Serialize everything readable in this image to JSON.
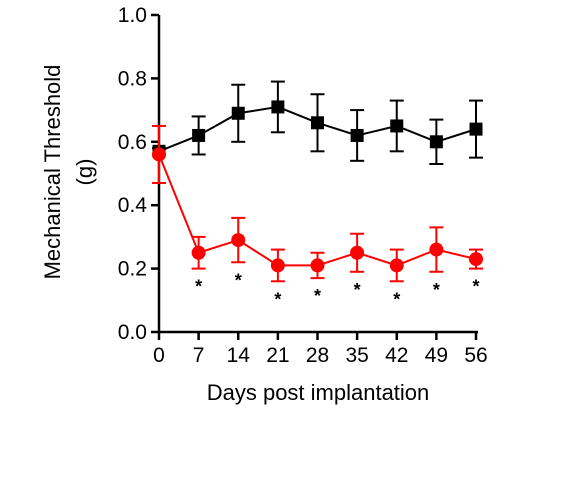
{
  "chart_data": {
    "type": "line",
    "xlabel": "Days post implantation",
    "ylabel_line1": "Mechanical Threshold",
    "ylabel_line2": "(g)",
    "x": [
      0,
      7,
      14,
      21,
      28,
      35,
      42,
      49,
      56
    ],
    "x_tick_labels": [
      "0",
      "7",
      "14",
      "21",
      "28",
      "35",
      "42",
      "49",
      "56"
    ],
    "y_ticks": [
      0.0,
      0.2,
      0.4,
      0.6,
      0.8,
      1.0
    ],
    "y_tick_labels": [
      "0.0",
      "0.2",
      "0.4",
      "0.6",
      "0.8",
      "1.0"
    ],
    "xlim": [
      0,
      56
    ],
    "ylim": [
      0,
      1.0
    ],
    "grid": false,
    "series": [
      {
        "marker": "square",
        "color": "#000000",
        "values": [
          0.57,
          0.62,
          0.69,
          0.71,
          0.66,
          0.62,
          0.65,
          0.6,
          0.64
        ],
        "errors": [
          0.01,
          0.06,
          0.09,
          0.08,
          0.09,
          0.08,
          0.08,
          0.07,
          0.09
        ]
      },
      {
        "marker": "circle",
        "color": "#ff0000",
        "values": [
          0.56,
          0.25,
          0.29,
          0.21,
          0.21,
          0.25,
          0.21,
          0.26,
          0.23
        ],
        "errors": [
          0.09,
          0.05,
          0.07,
          0.05,
          0.04,
          0.06,
          0.05,
          0.07,
          0.03
        ]
      }
    ],
    "significance_marker": "*",
    "significance_x": [
      7,
      14,
      21,
      28,
      35,
      42,
      49,
      56
    ]
  }
}
